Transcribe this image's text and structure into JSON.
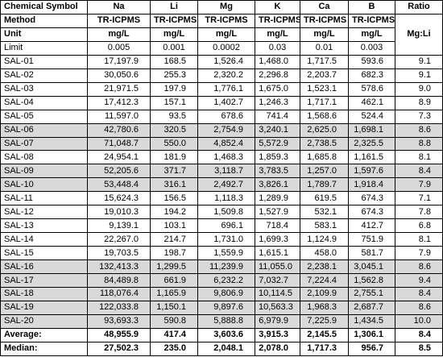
{
  "header": {
    "label": "Chemical Symbol",
    "columns": [
      "Na",
      "Li",
      "Mg",
      "K",
      "Ca",
      "B"
    ],
    "ratio": "Ratio"
  },
  "method": {
    "label": "Method",
    "values": [
      "TR-ICPMS",
      "TR-ICPMS",
      "TR-ICPMS",
      "TR-ICPMS",
      "TR-ICPMS",
      "TR-ICPMS"
    ]
  },
  "ratio_unit": "Mg:Li",
  "unit": {
    "label": "Unit",
    "values": [
      "mg/L",
      "mg/L",
      "mg/L",
      "mg/L",
      "mg/L",
      "mg/L"
    ]
  },
  "limit": {
    "label": "Limit",
    "values": [
      "0.005",
      "0.001",
      "0.0002",
      "0.03",
      "0.01",
      "0.003"
    ]
  },
  "rows": [
    {
      "cells": [
        "SAL-01",
        "17,197.9",
        "168.5",
        "1,526.4",
        "1,468.0",
        "1,717.5",
        "593.6",
        "9.1"
      ],
      "shaded": false
    },
    {
      "cells": [
        "SAL-02",
        "30,050.6",
        "255.3",
        "2,320.2",
        "2,296.8",
        "2,203.7",
        "682.3",
        "9.1"
      ],
      "shaded": false
    },
    {
      "cells": [
        "SAL-03",
        "21,971.5",
        "197.9",
        "1,776.1",
        "1,675.0",
        "1,523.1",
        "578.6",
        "9.0"
      ],
      "shaded": false
    },
    {
      "cells": [
        "SAL-04",
        "17,412.3",
        "157.1",
        "1,402.7",
        "1,246.3",
        "1,717.1",
        "462.1",
        "8.9"
      ],
      "shaded": false
    },
    {
      "cells": [
        "SAL-05",
        "11,597.0",
        "93.5",
        "678.6",
        "741.4",
        "1,568.6",
        "524.4",
        "7.3"
      ],
      "shaded": false
    },
    {
      "cells": [
        "SAL-06",
        "42,780.6",
        "320.5",
        "2,754.9",
        "3,240.1",
        "2,625.0",
        "1,698.1",
        "8.6"
      ],
      "shaded": true
    },
    {
      "cells": [
        "SAL-07",
        "71,048.7",
        "550.0",
        "4,852.4",
        "5,572.9",
        "2,738.5",
        "2,325.5",
        "8.8"
      ],
      "shaded": true
    },
    {
      "cells": [
        "SAL-08",
        "24,954.1",
        "181.9",
        "1,468.3",
        "1,859.3",
        "1,685.8",
        "1,161.5",
        "8.1"
      ],
      "shaded": false
    },
    {
      "cells": [
        "SAL-09",
        "52,205.6",
        "371.7",
        "3,118.7",
        "3,783.5",
        "1,257.0",
        "1,597.6",
        "8.4"
      ],
      "shaded": true
    },
    {
      "cells": [
        "SAL-10",
        "53,448.4",
        "316.1",
        "2,492.7",
        "3,826.1",
        "1,789.7",
        "1,918.4",
        "7.9"
      ],
      "shaded": true
    },
    {
      "cells": [
        "SAL-11",
        "15,624.3",
        "156.5",
        "1,118.3",
        "1,289.9",
        "619.5",
        "674.3",
        "7.1"
      ],
      "shaded": false
    },
    {
      "cells": [
        "SAL-12",
        "19,010.3",
        "194.2",
        "1,509.8",
        "1,527.9",
        "532.1",
        "674.3",
        "7.8"
      ],
      "shaded": false
    },
    {
      "cells": [
        "SAL-13",
        "9,139.1",
        "103.1",
        "696.1",
        "718.4",
        "583.1",
        "412.7",
        "6.8"
      ],
      "shaded": false
    },
    {
      "cells": [
        "SAL-14",
        "22,267.0",
        "214.7",
        "1,731.0",
        "1,699.3",
        "1,124.9",
        "751.9",
        "8.1"
      ],
      "shaded": false
    },
    {
      "cells": [
        "SAL-15",
        "19,703.5",
        "198.7",
        "1,559.9",
        "1,615.1",
        "458.0",
        "581.7",
        "7.9"
      ],
      "shaded": false
    },
    {
      "cells": [
        "SAL-16",
        "132,413.3",
        "1,299.5",
        "11,239.9",
        "11,055.0",
        "2,238.1",
        "3,045.1",
        "8.6"
      ],
      "shaded": true
    },
    {
      "cells": [
        "SAL-17",
        "84,489.8",
        "661.9",
        "6,232.2",
        "7,032.7",
        "7,224.4",
        "1,562.8",
        "9.4"
      ],
      "shaded": true
    },
    {
      "cells": [
        "SAL-18",
        "118,076.4",
        "1,165.9",
        "9,806.9",
        "10,114.5",
        "2,109.9",
        "2,755.1",
        "8.4"
      ],
      "shaded": true
    },
    {
      "cells": [
        "SAL-19",
        "122,033.8",
        "1,150.1",
        "9,897.6",
        "10,563.3",
        "1,968.3",
        "2,687.7",
        "8.6"
      ],
      "shaded": true
    },
    {
      "cells": [
        "SAL-20",
        "93,693.3",
        "590.8",
        "5,888.8",
        "6,979.9",
        "7,225.9",
        "1,434.5",
        "10.0"
      ],
      "shaded": true
    }
  ],
  "summary": [
    {
      "cells": [
        "Average:",
        "48,955.9",
        "417.4",
        "3,603.6",
        "3,915.3",
        "2,145.5",
        "1,306.1",
        "8.4"
      ]
    },
    {
      "cells": [
        "Median:",
        "27,502.3",
        "235.0",
        "2,048.1",
        "2,078.0",
        "1,717.3",
        "956.7",
        "8.5"
      ]
    }
  ]
}
